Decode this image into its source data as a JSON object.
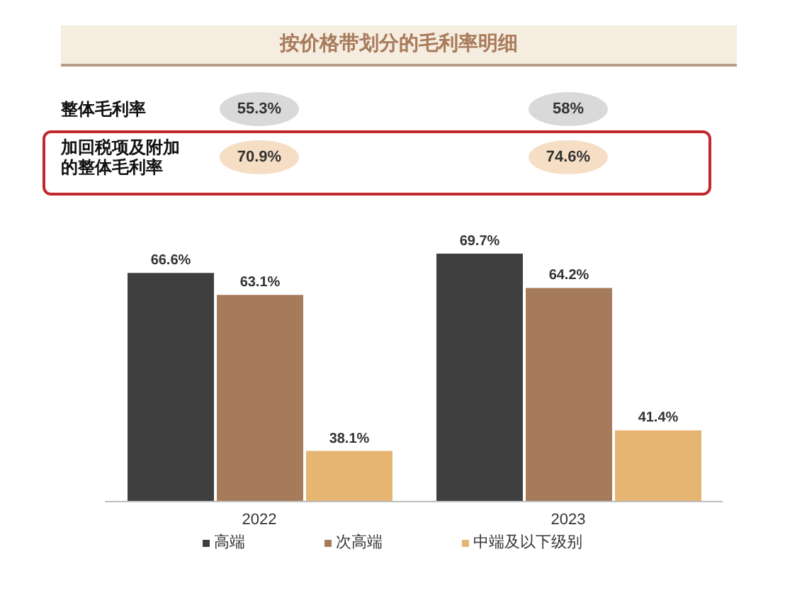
{
  "chart_data": [
    {
      "type": "other",
      "title": "按价格带划分的毛利率明细",
      "annotations": [
        "整体毛利率",
        "55.3%",
        "58%",
        "加回税项及附加的整体毛利率",
        "70.9%",
        "74.6%"
      ]
    },
    {
      "type": "bar",
      "categories": [
        "2022",
        "2023"
      ],
      "series": [
        {
          "name": "高端",
          "color": "#3f3f3f",
          "values": [
            66.6,
            69.7
          ],
          "value_labels": [
            "66.6%",
            "69.7%"
          ]
        },
        {
          "name": "次高端",
          "color": "#a67b5b",
          "values": [
            63.1,
            64.2
          ],
          "value_labels": [
            "63.1%",
            "64.2%"
          ]
        },
        {
          "name": "中端及以下级别",
          "color": "#e6b572",
          "values": [
            38.1,
            41.4
          ],
          "value_labels": [
            "38.1%",
            "41.4%"
          ]
        }
      ],
      "ylim": [
        30,
        69.7
      ],
      "tick_labels": "x",
      "legend": "bottom"
    }
  ]
}
